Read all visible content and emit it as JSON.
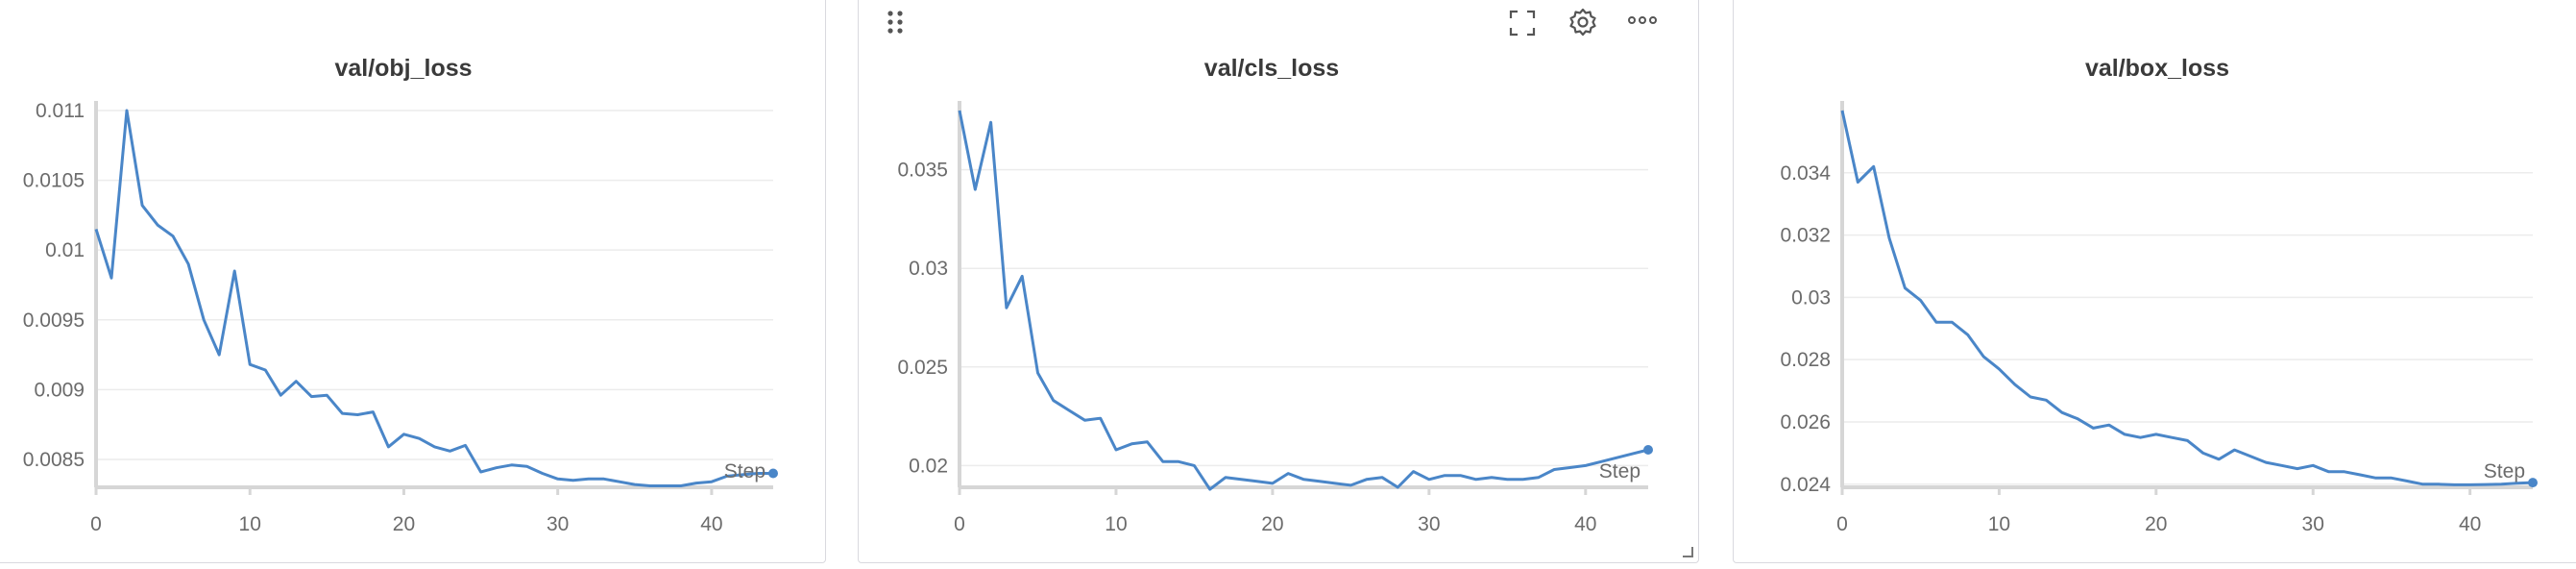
{
  "icons": {
    "drag": "drag-handle-icon",
    "fullscreen": "fullscreen-icon",
    "settings": "gear-icon",
    "more": "more-icon",
    "resize": "resize-corner-icon"
  },
  "colors": {
    "series": "#4a86c8"
  },
  "chart_data": [
    {
      "type": "line",
      "title": "val/obj_loss",
      "xlabel": "Step",
      "xlim": [
        0,
        44
      ],
      "ylim": [
        0.0083,
        0.011
      ],
      "xticks": [
        "0",
        "10",
        "20",
        "30",
        "40"
      ],
      "yticks": [
        "0.011",
        "0.0105",
        "0.01",
        "0.0095",
        "0.009",
        "0.0085"
      ],
      "series": [
        {
          "x": [
            0,
            1,
            2,
            3,
            4,
            5,
            6,
            7,
            8,
            9,
            10,
            11,
            12,
            13,
            14,
            15,
            16,
            17,
            18,
            19,
            20,
            21,
            22,
            23,
            24,
            25,
            26,
            27,
            28,
            29,
            30,
            31,
            32,
            33,
            34,
            35,
            36,
            37,
            38,
            39,
            40,
            41,
            42,
            43,
            44
          ],
          "y": [
            0.01015,
            0.0098,
            0.011,
            0.01032,
            0.01018,
            0.0101,
            0.0099,
            0.0095,
            0.00925,
            0.00985,
            0.00918,
            0.00914,
            0.00896,
            0.00906,
            0.00895,
            0.00896,
            0.00883,
            0.00882,
            0.00884,
            0.00859,
            0.00868,
            0.00865,
            0.00859,
            0.00856,
            0.0086,
            0.00841,
            0.00844,
            0.00846,
            0.00845,
            0.0084,
            0.00836,
            0.00835,
            0.00836,
            0.00836,
            0.00834,
            0.00832,
            0.00831,
            0.00831,
            0.00831,
            0.00833,
            0.00834,
            0.00838,
            0.00839,
            0.0084,
            0.0084
          ]
        }
      ]
    },
    {
      "type": "line",
      "title": "val/cls_loss",
      "xlabel": "Step",
      "xlim": [
        0,
        44
      ],
      "ylim": [
        0.0189,
        0.038
      ],
      "xticks": [
        "0",
        "10",
        "20",
        "30",
        "40"
      ],
      "yticks": [
        "0.035",
        "0.03",
        "0.025",
        "0.02"
      ],
      "series": [
        {
          "x": [
            0,
            1,
            2,
            3,
            4,
            5,
            6,
            7,
            8,
            9,
            10,
            11,
            12,
            13,
            14,
            15,
            16,
            17,
            18,
            19,
            20,
            21,
            22,
            23,
            24,
            25,
            26,
            27,
            28,
            29,
            30,
            31,
            32,
            33,
            34,
            35,
            36,
            37,
            38,
            39,
            40,
            41,
            42,
            43,
            44
          ],
          "y": [
            0.038,
            0.034,
            0.0374,
            0.028,
            0.0296,
            0.0247,
            0.0233,
            0.0228,
            0.0223,
            0.0224,
            0.0208,
            0.0211,
            0.0212,
            0.0202,
            0.0202,
            0.02,
            0.0188,
            0.0194,
            0.0193,
            0.0192,
            0.0191,
            0.0196,
            0.0193,
            0.0192,
            0.0191,
            0.019,
            0.0193,
            0.0194,
            0.0189,
            0.0197,
            0.0193,
            0.0195,
            0.0195,
            0.0193,
            0.0194,
            0.0193,
            0.0193,
            0.0194,
            0.0198,
            0.0199,
            0.02,
            0.0202,
            0.0204,
            0.0206,
            0.0208
          ]
        }
      ]
    },
    {
      "type": "line",
      "title": "val/box_loss",
      "xlabel": "Step",
      "xlim": [
        0,
        44
      ],
      "ylim": [
        0.0239,
        0.036
      ],
      "xticks": [
        "0",
        "10",
        "20",
        "30",
        "40"
      ],
      "yticks": [
        "0.034",
        "0.032",
        "0.03",
        "0.028",
        "0.026",
        "0.024"
      ],
      "series": [
        {
          "x": [
            0,
            1,
            2,
            3,
            4,
            5,
            6,
            7,
            8,
            9,
            10,
            11,
            12,
            13,
            14,
            15,
            16,
            17,
            18,
            19,
            20,
            21,
            22,
            23,
            24,
            25,
            26,
            27,
            28,
            29,
            30,
            31,
            32,
            33,
            34,
            35,
            36,
            37,
            38,
            39,
            40,
            41,
            42,
            43,
            44
          ],
          "y": [
            0.036,
            0.0337,
            0.0342,
            0.0319,
            0.0303,
            0.0299,
            0.0292,
            0.0292,
            0.0288,
            0.0281,
            0.0277,
            0.0272,
            0.0268,
            0.0267,
            0.0263,
            0.0261,
            0.0258,
            0.0259,
            0.0256,
            0.0255,
            0.0256,
            0.0255,
            0.0254,
            0.025,
            0.0248,
            0.0251,
            0.0249,
            0.0247,
            0.0246,
            0.0245,
            0.0246,
            0.0244,
            0.0244,
            0.0243,
            0.0242,
            0.0242,
            0.0241,
            0.024,
            0.024,
            0.02398,
            0.02398,
            0.02399,
            0.024,
            0.02403,
            0.02405
          ]
        }
      ]
    }
  ]
}
